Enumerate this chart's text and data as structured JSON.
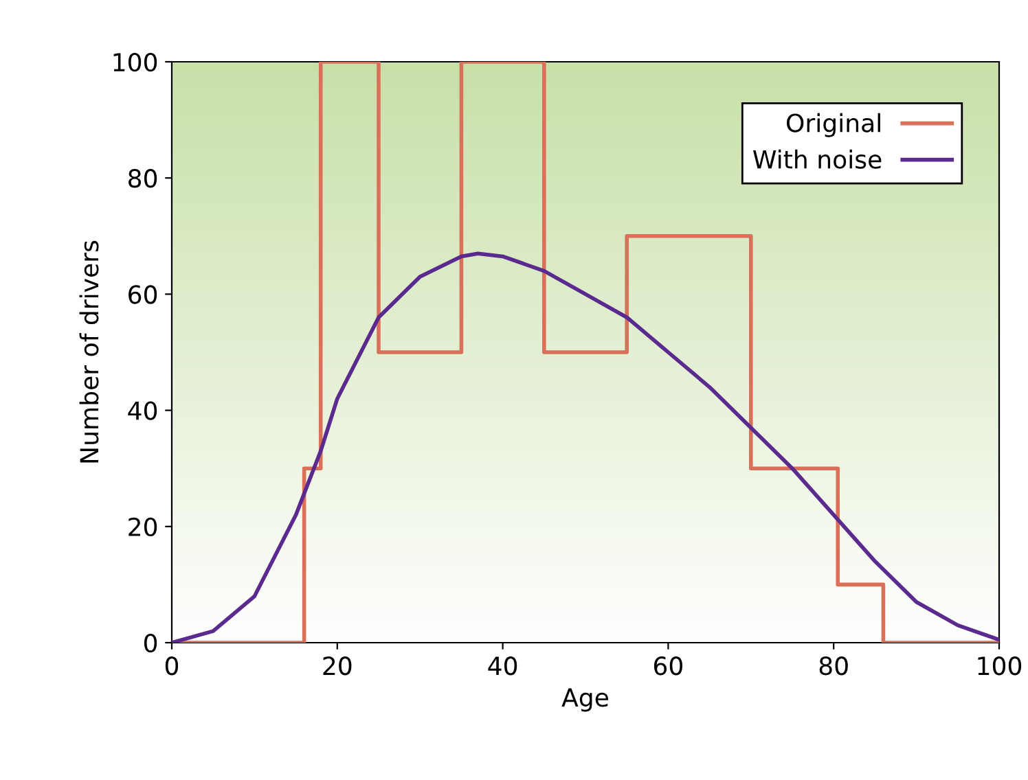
{
  "chart_data": {
    "type": "line",
    "xlabel": "Age",
    "ylabel": "Number of drivers",
    "xlim": [
      0,
      100
    ],
    "ylim": [
      0,
      100
    ],
    "xticks": [
      0,
      20,
      40,
      60,
      80,
      100
    ],
    "yticks": [
      0,
      20,
      40,
      60,
      80,
      100
    ],
    "legend": "top right",
    "grid": false,
    "series": [
      {
        "name": "Original",
        "type": "step",
        "color": "#d9705a",
        "x": [
          0,
          16,
          18,
          25,
          35,
          45,
          55,
          70,
          80.5,
          86,
          100
        ],
        "values": [
          0,
          30,
          100,
          50,
          100,
          50,
          70,
          30,
          10,
          0,
          0
        ]
      },
      {
        "name": "With noise",
        "color": "#5b2a8f",
        "x": [
          0,
          5,
          10,
          15,
          18,
          20,
          25,
          30,
          35,
          37,
          40,
          45,
          50,
          55,
          60,
          65,
          70,
          75,
          80,
          85,
          90,
          95,
          100
        ],
        "values": [
          0,
          2,
          8,
          22,
          33,
          42,
          56,
          63,
          66.5,
          67,
          66.5,
          64,
          60,
          56,
          50,
          44,
          37,
          30,
          22,
          14,
          7,
          3,
          0.5
        ]
      }
    ]
  }
}
